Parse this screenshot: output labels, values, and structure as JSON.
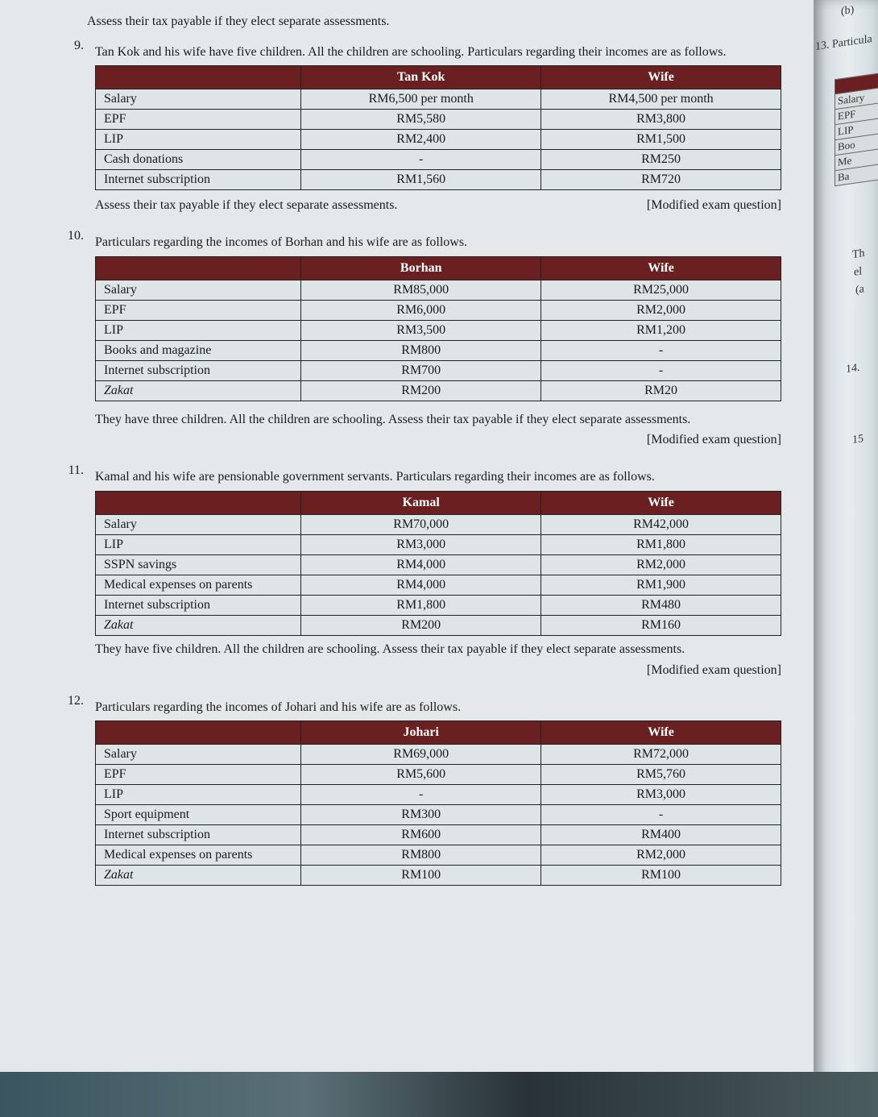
{
  "intro_line": "Assess their tax payable if they elect separate assessments.",
  "q9": {
    "num": "9.",
    "text": "Tan Kok and his wife have five children. All the children are schooling. Particulars regarding their incomes are as follows.",
    "table": {
      "headers": [
        "",
        "Tan Kok",
        "Wife"
      ],
      "rows": [
        {
          "label": "Salary",
          "c1": "RM6,500 per month",
          "c2": "RM4,500 per month"
        },
        {
          "label": "EPF",
          "c1": "RM5,580",
          "c2": "RM3,800"
        },
        {
          "label": "LIP",
          "c1": "RM2,400",
          "c2": "RM1,500"
        },
        {
          "label": "Cash donations",
          "c1": "-",
          "c2": "RM250"
        },
        {
          "label": "Internet subscription",
          "c1": "RM1,560",
          "c2": "RM720"
        }
      ]
    },
    "after_left": "Assess their tax payable if they elect separate assessments.",
    "after_right": "[Modified exam question]"
  },
  "q10": {
    "num": "10.",
    "text": "Particulars regarding the incomes of Borhan and his wife are as follows.",
    "table": {
      "headers": [
        "",
        "Borhan",
        "Wife"
      ],
      "rows": [
        {
          "label": "Salary",
          "c1": "RM85,000",
          "c2": "RM25,000"
        },
        {
          "label": "EPF",
          "c1": "RM6,000",
          "c2": "RM2,000"
        },
        {
          "label": "LIP",
          "c1": "RM3,500",
          "c2": "RM1,200"
        },
        {
          "label": "Books and magazine",
          "c1": "RM800",
          "c2": "-"
        },
        {
          "label": "Internet subscription",
          "c1": "RM700",
          "c2": "-"
        },
        {
          "label": "Zakat",
          "c1": "RM200",
          "c2": "RM20",
          "italic": true
        }
      ]
    },
    "after_line": "They have three children. All the children are schooling. Assess their tax payable if they elect separate assessments.",
    "after_right": "[Modified exam question]"
  },
  "q11": {
    "num": "11.",
    "text": "Kamal and his wife are pensionable government servants. Particulars regarding their incomes are as follows.",
    "table": {
      "headers": [
        "",
        "Kamal",
        "Wife"
      ],
      "rows": [
        {
          "label": "Salary",
          "c1": "RM70,000",
          "c2": "RM42,000"
        },
        {
          "label": "LIP",
          "c1": "RM3,000",
          "c2": "RM1,800"
        },
        {
          "label": "SSPN savings",
          "c1": "RM4,000",
          "c2": "RM2,000"
        },
        {
          "label": "Medical expenses on parents",
          "c1": "RM4,000",
          "c2": "RM1,900"
        },
        {
          "label": "Internet subscription",
          "c1": "RM1,800",
          "c2": "RM480"
        },
        {
          "label": "Zakat",
          "c1": "RM200",
          "c2": "RM160",
          "italic": true
        }
      ]
    },
    "after_line": "They have five children. All the children are schooling. Assess their tax payable if they elect separate assessments.",
    "after_right": "[Modified exam question]"
  },
  "q12": {
    "num": "12.",
    "text": "Particulars regarding the incomes of Johari and his wife are as follows.",
    "table": {
      "headers": [
        "",
        "Johari",
        "Wife"
      ],
      "rows": [
        {
          "label": "Salary",
          "c1": "RM69,000",
          "c2": "RM72,000"
        },
        {
          "label": "EPF",
          "c1": "RM5,600",
          "c2": "RM5,760"
        },
        {
          "label": "LIP",
          "c1": "-",
          "c2": "RM3,000"
        },
        {
          "label": "Sport equipment",
          "c1": "RM300",
          "c2": "-"
        },
        {
          "label": "Internet subscription",
          "c1": "RM600",
          "c2": "RM400"
        },
        {
          "label": "Medical expenses on parents",
          "c1": "RM800",
          "c2": "RM2,000"
        },
        {
          "label": "Zakat",
          "c1": "RM100",
          "c2": "RM100",
          "italic": true
        }
      ]
    }
  },
  "edge": {
    "f0": "(b)",
    "f1": "13. Particula",
    "f2": "Salary",
    "f3": "EPF",
    "f4": "LIP",
    "f5": "Boo",
    "f6": "Me",
    "f7": "Ba",
    "f8": "Th",
    "f9": "el",
    "f10": "(a",
    "f11": "14.",
    "f12": "15"
  }
}
